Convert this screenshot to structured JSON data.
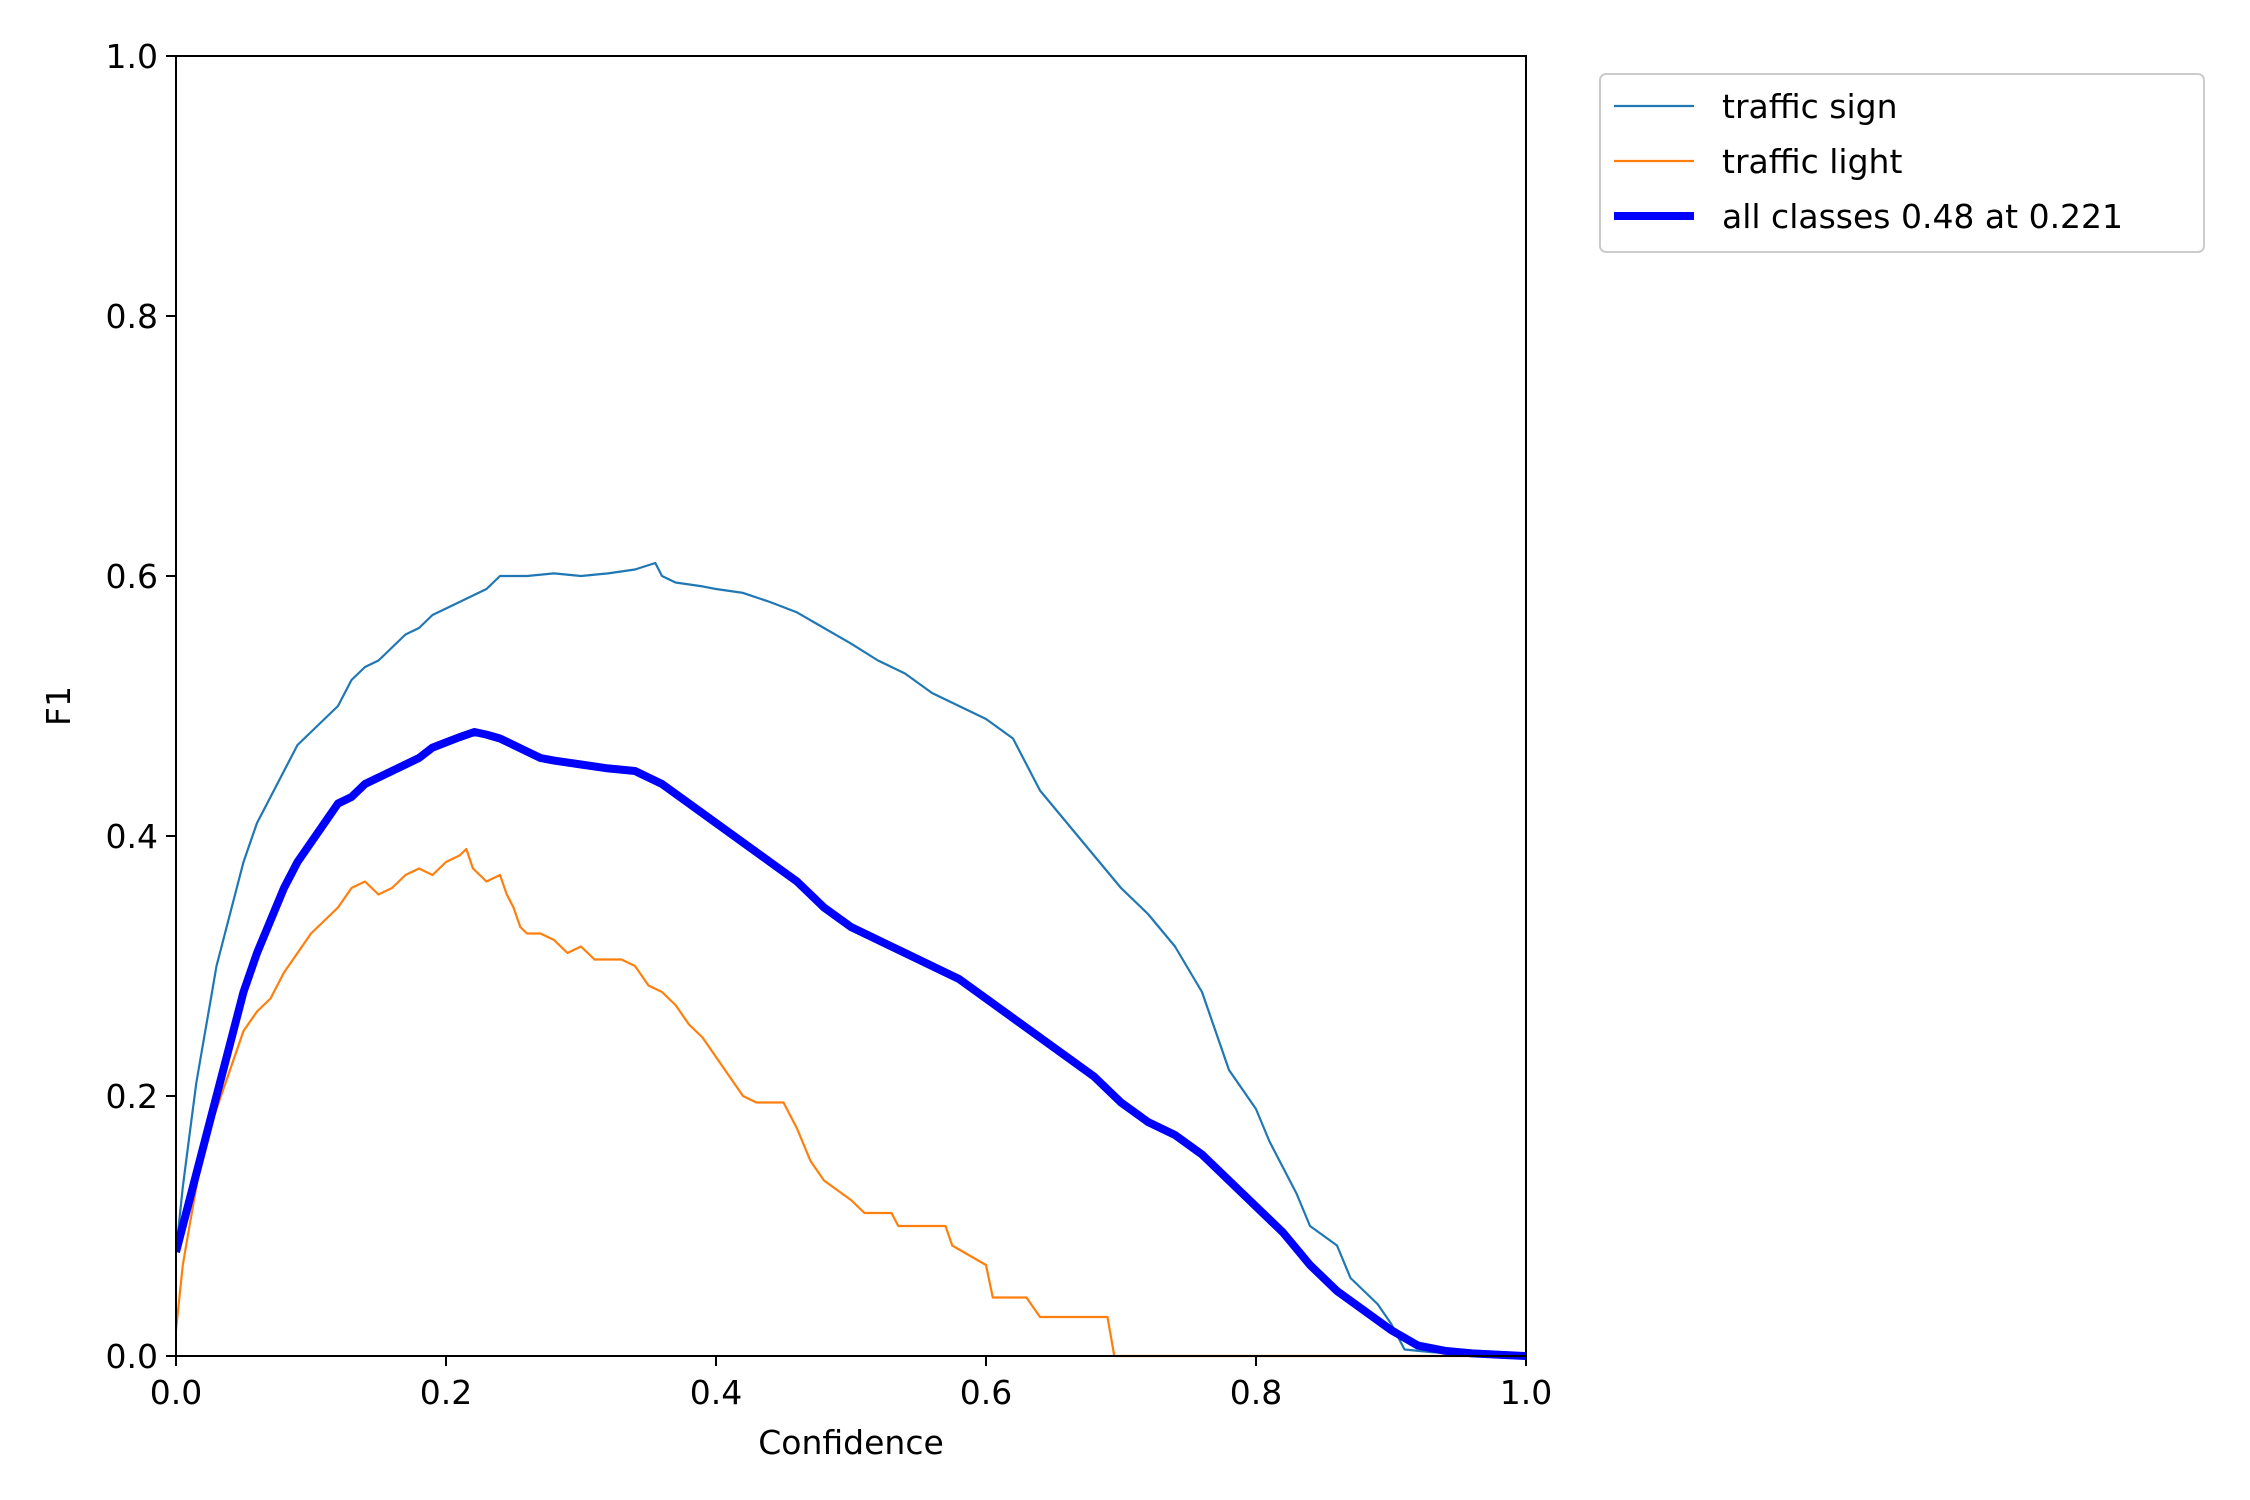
{
  "chart_data": {
    "type": "line",
    "title": "",
    "xlabel": "Confidence",
    "ylabel": "F1",
    "xlim": [
      0.0,
      1.0
    ],
    "ylim": [
      0.0,
      1.0
    ],
    "xticks": [
      "0.0",
      "0.2",
      "0.4",
      "0.6",
      "0.8",
      "1.0"
    ],
    "yticks": [
      "0.0",
      "0.2",
      "0.4",
      "0.6",
      "0.8",
      "1.0"
    ],
    "grid": false,
    "legend_position": "outside top-right",
    "series": [
      {
        "name": "traffic sign",
        "color": "#1f77b4",
        "style": "thin",
        "points": [
          [
            0.0,
            0.08
          ],
          [
            0.005,
            0.13
          ],
          [
            0.01,
            0.17
          ],
          [
            0.015,
            0.21
          ],
          [
            0.02,
            0.24
          ],
          [
            0.025,
            0.27
          ],
          [
            0.03,
            0.3
          ],
          [
            0.04,
            0.34
          ],
          [
            0.05,
            0.38
          ],
          [
            0.06,
            0.41
          ],
          [
            0.07,
            0.43
          ],
          [
            0.08,
            0.45
          ],
          [
            0.09,
            0.47
          ],
          [
            0.1,
            0.48
          ],
          [
            0.11,
            0.49
          ],
          [
            0.12,
            0.5
          ],
          [
            0.13,
            0.52
          ],
          [
            0.14,
            0.53
          ],
          [
            0.15,
            0.535
          ],
          [
            0.16,
            0.545
          ],
          [
            0.17,
            0.555
          ],
          [
            0.18,
            0.56
          ],
          [
            0.19,
            0.57
          ],
          [
            0.2,
            0.575
          ],
          [
            0.21,
            0.58
          ],
          [
            0.22,
            0.585
          ],
          [
            0.23,
            0.59
          ],
          [
            0.24,
            0.6
          ],
          [
            0.26,
            0.6
          ],
          [
            0.28,
            0.602
          ],
          [
            0.3,
            0.6
          ],
          [
            0.32,
            0.602
          ],
          [
            0.34,
            0.605
          ],
          [
            0.355,
            0.61
          ],
          [
            0.36,
            0.6
          ],
          [
            0.37,
            0.595
          ],
          [
            0.39,
            0.592
          ],
          [
            0.4,
            0.59
          ],
          [
            0.42,
            0.587
          ],
          [
            0.44,
            0.58
          ],
          [
            0.46,
            0.572
          ],
          [
            0.48,
            0.56
          ],
          [
            0.5,
            0.548
          ],
          [
            0.52,
            0.535
          ],
          [
            0.54,
            0.525
          ],
          [
            0.56,
            0.51
          ],
          [
            0.58,
            0.5
          ],
          [
            0.6,
            0.49
          ],
          [
            0.62,
            0.475
          ],
          [
            0.63,
            0.455
          ],
          [
            0.64,
            0.435
          ],
          [
            0.66,
            0.41
          ],
          [
            0.68,
            0.385
          ],
          [
            0.7,
            0.36
          ],
          [
            0.72,
            0.34
          ],
          [
            0.74,
            0.315
          ],
          [
            0.76,
            0.28
          ],
          [
            0.77,
            0.25
          ],
          [
            0.78,
            0.22
          ],
          [
            0.8,
            0.19
          ],
          [
            0.81,
            0.165
          ],
          [
            0.82,
            0.145
          ],
          [
            0.83,
            0.125
          ],
          [
            0.84,
            0.1
          ],
          [
            0.86,
            0.085
          ],
          [
            0.87,
            0.06
          ],
          [
            0.88,
            0.05
          ],
          [
            0.89,
            0.04
          ],
          [
            0.9,
            0.025
          ],
          [
            0.905,
            0.015
          ],
          [
            0.91,
            0.005
          ],
          [
            0.93,
            0.003
          ],
          [
            0.96,
            0.001
          ],
          [
            1.0,
            0.0
          ]
        ]
      },
      {
        "name": "traffic light",
        "color": "#ff7f0e",
        "style": "thin",
        "points": [
          [
            0.0,
            0.02
          ],
          [
            0.005,
            0.07
          ],
          [
            0.01,
            0.1
          ],
          [
            0.015,
            0.13
          ],
          [
            0.02,
            0.16
          ],
          [
            0.03,
            0.19
          ],
          [
            0.04,
            0.22
          ],
          [
            0.05,
            0.25
          ],
          [
            0.06,
            0.265
          ],
          [
            0.07,
            0.275
          ],
          [
            0.08,
            0.295
          ],
          [
            0.09,
            0.31
          ],
          [
            0.1,
            0.325
          ],
          [
            0.11,
            0.335
          ],
          [
            0.12,
            0.345
          ],
          [
            0.13,
            0.36
          ],
          [
            0.14,
            0.365
          ],
          [
            0.15,
            0.355
          ],
          [
            0.16,
            0.36
          ],
          [
            0.17,
            0.37
          ],
          [
            0.18,
            0.375
          ],
          [
            0.19,
            0.37
          ],
          [
            0.2,
            0.38
          ],
          [
            0.21,
            0.385
          ],
          [
            0.215,
            0.39
          ],
          [
            0.22,
            0.375
          ],
          [
            0.23,
            0.365
          ],
          [
            0.24,
            0.37
          ],
          [
            0.245,
            0.355
          ],
          [
            0.25,
            0.345
          ],
          [
            0.255,
            0.33
          ],
          [
            0.26,
            0.325
          ],
          [
            0.27,
            0.325
          ],
          [
            0.28,
            0.32
          ],
          [
            0.29,
            0.31
          ],
          [
            0.3,
            0.315
          ],
          [
            0.31,
            0.305
          ],
          [
            0.33,
            0.305
          ],
          [
            0.34,
            0.3
          ],
          [
            0.35,
            0.285
          ],
          [
            0.36,
            0.28
          ],
          [
            0.37,
            0.27
          ],
          [
            0.38,
            0.255
          ],
          [
            0.39,
            0.245
          ],
          [
            0.4,
            0.23
          ],
          [
            0.41,
            0.215
          ],
          [
            0.42,
            0.2
          ],
          [
            0.43,
            0.195
          ],
          [
            0.45,
            0.195
          ],
          [
            0.46,
            0.175
          ],
          [
            0.47,
            0.15
          ],
          [
            0.48,
            0.135
          ],
          [
            0.5,
            0.12
          ],
          [
            0.51,
            0.11
          ],
          [
            0.53,
            0.11
          ],
          [
            0.535,
            0.1
          ],
          [
            0.57,
            0.1
          ],
          [
            0.575,
            0.085
          ],
          [
            0.6,
            0.07
          ],
          [
            0.605,
            0.045
          ],
          [
            0.63,
            0.045
          ],
          [
            0.64,
            0.03
          ],
          [
            0.68,
            0.03
          ],
          [
            0.69,
            0.03
          ],
          [
            0.695,
            0.0
          ],
          [
            1.0,
            0.0
          ]
        ]
      },
      {
        "name": "all classes 0.48 at 0.221",
        "color": "#0000ff",
        "style": "thick",
        "points": [
          [
            0.0,
            0.08
          ],
          [
            0.01,
            0.12
          ],
          [
            0.02,
            0.16
          ],
          [
            0.03,
            0.2
          ],
          [
            0.04,
            0.24
          ],
          [
            0.05,
            0.28
          ],
          [
            0.06,
            0.31
          ],
          [
            0.07,
            0.335
          ],
          [
            0.08,
            0.36
          ],
          [
            0.09,
            0.38
          ],
          [
            0.1,
            0.395
          ],
          [
            0.11,
            0.41
          ],
          [
            0.12,
            0.425
          ],
          [
            0.13,
            0.43
          ],
          [
            0.14,
            0.44
          ],
          [
            0.15,
            0.445
          ],
          [
            0.16,
            0.45
          ],
          [
            0.17,
            0.455
          ],
          [
            0.18,
            0.46
          ],
          [
            0.19,
            0.468
          ],
          [
            0.2,
            0.472
          ],
          [
            0.21,
            0.476
          ],
          [
            0.221,
            0.48
          ],
          [
            0.23,
            0.478
          ],
          [
            0.24,
            0.475
          ],
          [
            0.25,
            0.47
          ],
          [
            0.26,
            0.465
          ],
          [
            0.27,
            0.46
          ],
          [
            0.28,
            0.458
          ],
          [
            0.3,
            0.455
          ],
          [
            0.32,
            0.452
          ],
          [
            0.34,
            0.45
          ],
          [
            0.35,
            0.445
          ],
          [
            0.36,
            0.44
          ],
          [
            0.38,
            0.425
          ],
          [
            0.4,
            0.41
          ],
          [
            0.42,
            0.395
          ],
          [
            0.44,
            0.38
          ],
          [
            0.46,
            0.365
          ],
          [
            0.48,
            0.345
          ],
          [
            0.5,
            0.33
          ],
          [
            0.52,
            0.32
          ],
          [
            0.54,
            0.31
          ],
          [
            0.56,
            0.3
          ],
          [
            0.58,
            0.29
          ],
          [
            0.6,
            0.275
          ],
          [
            0.62,
            0.26
          ],
          [
            0.64,
            0.245
          ],
          [
            0.66,
            0.23
          ],
          [
            0.68,
            0.215
          ],
          [
            0.7,
            0.195
          ],
          [
            0.72,
            0.18
          ],
          [
            0.74,
            0.17
          ],
          [
            0.76,
            0.155
          ],
          [
            0.78,
            0.135
          ],
          [
            0.8,
            0.115
          ],
          [
            0.82,
            0.095
          ],
          [
            0.84,
            0.07
          ],
          [
            0.86,
            0.05
          ],
          [
            0.88,
            0.035
          ],
          [
            0.9,
            0.02
          ],
          [
            0.92,
            0.008
          ],
          [
            0.94,
            0.004
          ],
          [
            0.96,
            0.002
          ],
          [
            0.98,
            0.001
          ],
          [
            1.0,
            0.0
          ]
        ]
      }
    ]
  }
}
